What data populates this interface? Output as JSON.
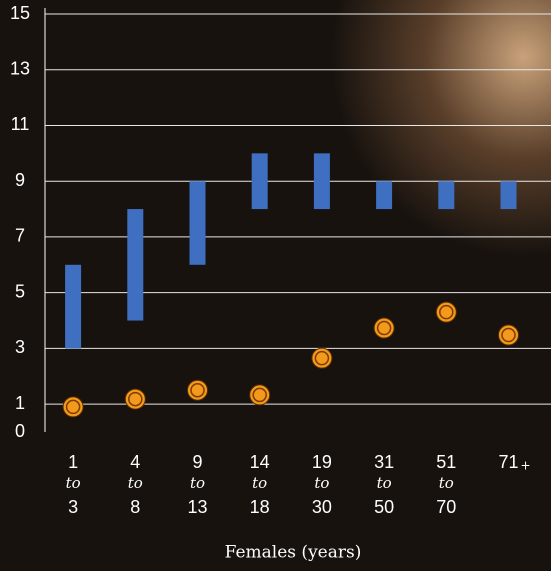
{
  "chart_data": {
    "type": "range-bar-point",
    "x_label": "Females (years)",
    "range_word": "to",
    "categories": [
      {
        "from": "1",
        "to": "3"
      },
      {
        "from": "4",
        "to": "8"
      },
      {
        "from": "9",
        "to": "13"
      },
      {
        "from": "14",
        "to": "18"
      },
      {
        "from": "19",
        "to": "30"
      },
      {
        "from": "31",
        "to": "50"
      },
      {
        "from": "51",
        "to": "70"
      },
      {
        "from": "71",
        "suffix": "+"
      }
    ],
    "ranges": {
      "color": "#3f6fc0",
      "low": [
        3,
        4,
        6,
        8,
        8,
        8,
        8,
        8
      ],
      "high": [
        6,
        8,
        9,
        10,
        10,
        9,
        9,
        9
      ]
    },
    "points": {
      "color": "#f39a1e",
      "values": [
        0.9,
        1.18,
        1.5,
        1.33,
        2.65,
        3.73,
        4.3,
        3.48
      ]
    },
    "ylim": [
      0,
      15
    ],
    "yticks": [
      0,
      1,
      3,
      5,
      7,
      9,
      11,
      13,
      15
    ],
    "grid": true
  }
}
